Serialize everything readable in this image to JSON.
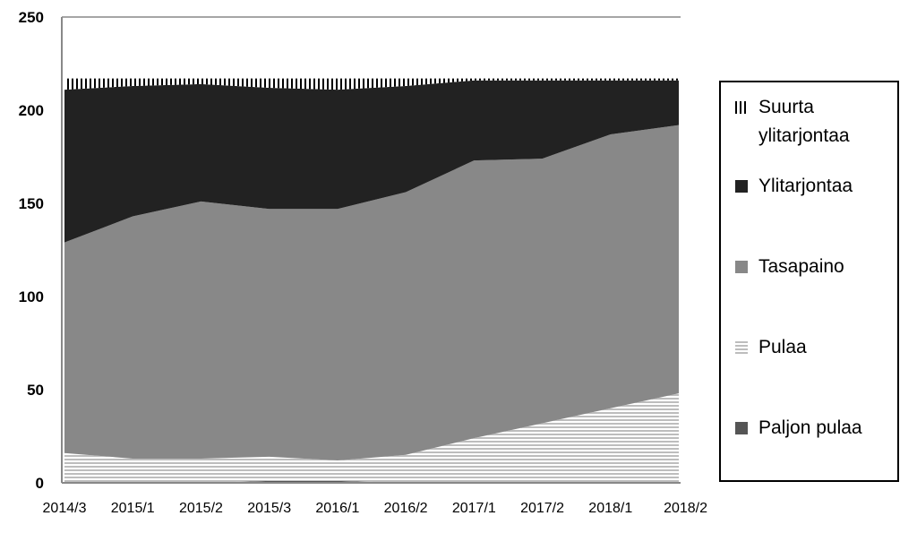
{
  "chart_data": {
    "type": "area",
    "stacked": true,
    "categories": [
      "2014/3",
      "2015/1",
      "2015/2",
      "2015/3",
      "2016/1",
      "2016/2",
      "2017/1",
      "2017/2",
      "2018/1",
      "2018/2"
    ],
    "ylim": [
      0,
      250
    ],
    "yticks": [
      0,
      50,
      100,
      150,
      200,
      250
    ],
    "title": "",
    "xlabel": "",
    "ylabel": "",
    "legend_position": "right",
    "series": [
      {
        "name": "Paljon pulaa",
        "key": "paljon",
        "color": "#555555",
        "values": [
          0,
          0,
          0,
          1,
          1,
          0,
          0,
          0,
          0,
          0
        ]
      },
      {
        "name": "Pulaa",
        "key": "pulaa",
        "color": "#cfcfcf",
        "values": [
          16,
          13,
          13,
          13,
          11,
          15,
          24,
          32,
          40,
          48
        ]
      },
      {
        "name": "Tasapaino",
        "key": "tasapaino",
        "color": "#888888",
        "values": [
          113,
          130,
          138,
          133,
          135,
          141,
          149,
          142,
          147,
          144
        ]
      },
      {
        "name": "Ylitarjontaa",
        "key": "yli",
        "color": "#222222",
        "values": [
          82,
          70,
          63,
          65,
          64,
          57,
          43,
          42,
          29,
          24
        ]
      },
      {
        "name": "Suurta ylitarjontaa",
        "key": "suurta",
        "color": "#000000",
        "values": [
          6,
          4,
          3,
          5,
          6,
          4,
          1,
          1,
          1,
          1
        ]
      }
    ]
  }
}
